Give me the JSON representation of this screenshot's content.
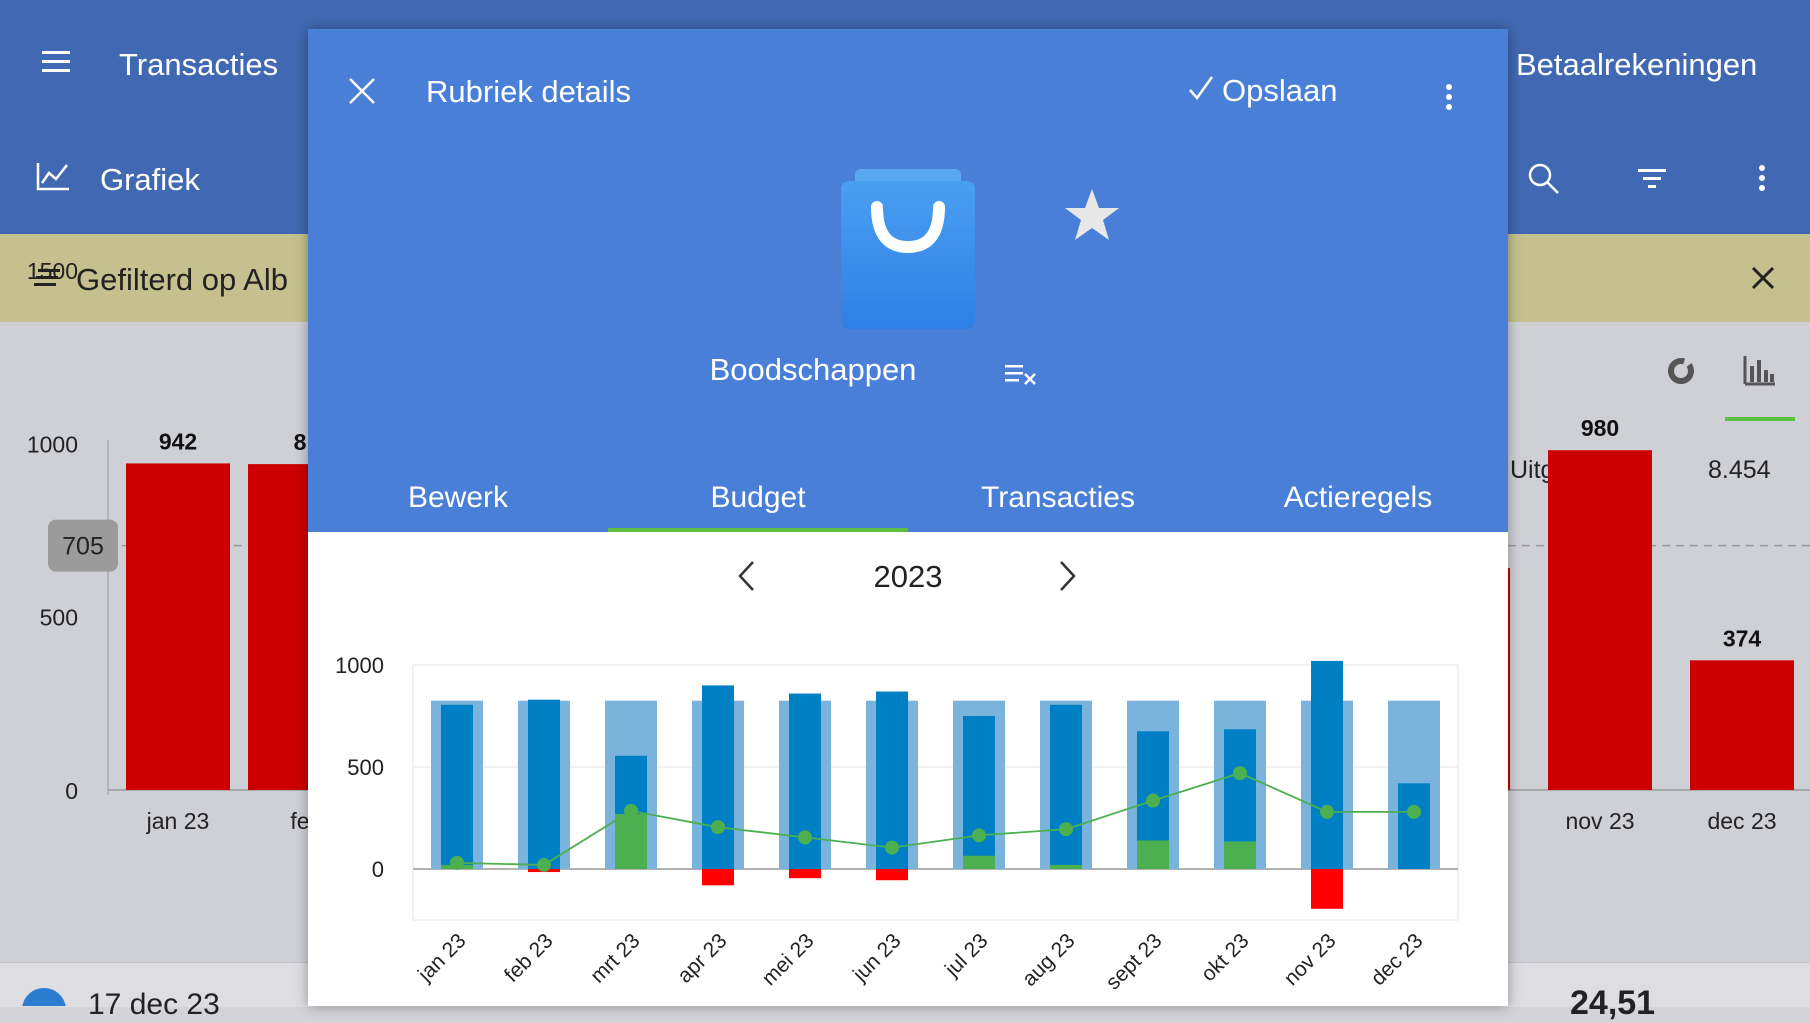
{
  "background": {
    "topbar": {
      "menu_icon": "hamburger-icon",
      "title": "Transacties",
      "accounts": "Betaalrekeningen"
    },
    "secondbar": {
      "chart_icon": "line-chart-icon",
      "title": "Grafiek",
      "search_icon": "search-icon",
      "filter_icon": "filter-icon",
      "more_icon": "more-vertical-icon"
    },
    "filter": {
      "icon": "filter-lines-icon",
      "text": "Gefilterd op Alb",
      "close_icon": "close-icon"
    },
    "chart": {
      "donut_icon": "donut-chart-icon",
      "bar_icon": "bar-chart-icon",
      "summary_label": "Uitgaven",
      "summary_value": "8.454",
      "average_label": "705",
      "y_ticks": [
        "1500",
        "1000",
        "500",
        "0"
      ]
    },
    "list": {
      "date": "17 dec 23",
      "amount": "24,51"
    }
  },
  "modal": {
    "close_icon": "close-icon",
    "title": "Rubriek details",
    "save_icon": "checkmark-icon",
    "save_label": "Opslaan",
    "more_icon": "more-vertical-icon",
    "category_icon": "shopping-bag-icon",
    "favorite_icon": "star-icon",
    "category_name": "Boodschappen",
    "clear_icon": "clear-filter-icon",
    "tabs": [
      "Bewerk",
      "Budget",
      "Transacties",
      "Actieregels"
    ],
    "active_tab": "Budget",
    "year": "2023",
    "prev_icon": "chevron-left-icon",
    "next_icon": "chevron-right-icon"
  },
  "colors": {
    "appbar": "#4169b3",
    "modal_header": "#4a7fd8",
    "filter_bar": "#c5c08e",
    "expense_red": "#cc0000",
    "budget_light_blue": "#7ab3db",
    "spent_blue": "#0080c4",
    "surplus_green": "#4caf50",
    "over_red": "#ff0000",
    "tab_indicator": "#5cc043"
  },
  "chart_data": [
    {
      "type": "bar",
      "categories": [
        "jan 23",
        "fe",
        "nov 23",
        "dec 23"
      ],
      "values": [
        942,
        null,
        980,
        374
      ],
      "data_labels": [
        "942",
        "8",
        "980",
        "374"
      ],
      "reference_line": 705,
      "ylim": [
        0,
        1500
      ],
      "yticks": [
        0,
        500,
        1000,
        1500
      ]
    },
    {
      "type": "bar",
      "categories": [
        "jan 23",
        "feb 23",
        "mrt 23",
        "apr 23",
        "mei 23",
        "jun 23",
        "jul 23",
        "aug 23",
        "sept 23",
        "okt 23",
        "nov 23",
        "dec 23"
      ],
      "series": [
        {
          "values": [
            825,
            825,
            825,
            825,
            825,
            825,
            825,
            825,
            825,
            825,
            825,
            825
          ]
        },
        {
          "values": [
            805,
            830,
            555,
            900,
            860,
            870,
            750,
            805,
            675,
            685,
            1020,
            420
          ]
        },
        {
          "values": [
            20,
            0,
            270,
            0,
            0,
            0,
            65,
            20,
            140,
            135,
            0,
            0
          ]
        },
        {
          "values": [
            0,
            -15,
            0,
            -80,
            -45,
            -55,
            0,
            0,
            0,
            0,
            -195,
            0
          ]
        },
        {
          "type": "line",
          "values": [
            30,
            20,
            285,
            205,
            155,
            105,
            165,
            195,
            335,
            470,
            280,
            280
          ]
        }
      ],
      "ylim": [
        -250,
        1000
      ],
      "yticks": [
        0,
        500,
        1000
      ],
      "grid": true
    }
  ]
}
